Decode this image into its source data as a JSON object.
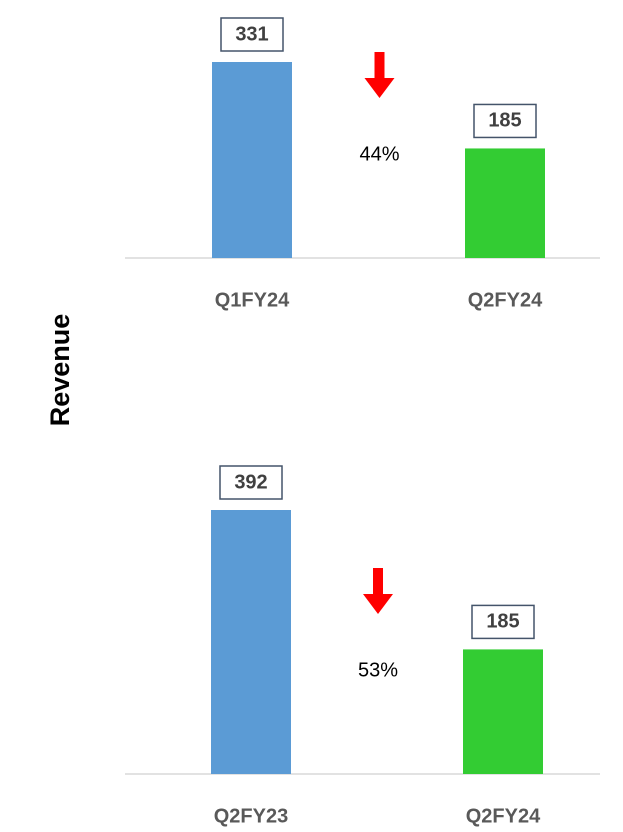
{
  "ylabel": "Revenue",
  "chart_data": [
    {
      "type": "bar",
      "categories": [
        "Q1FY24",
        "Q2FY24"
      ],
      "values": [
        331,
        185
      ],
      "colors": [
        "#5b9bd5",
        "#33cc33"
      ],
      "annotation": "44%",
      "arrow_color": "#ff0000"
    },
    {
      "type": "bar",
      "categories": [
        "Q2FY23",
        "Q2FY24"
      ],
      "values": [
        392,
        185
      ],
      "colors": [
        "#5b9bd5",
        "#33cc33"
      ],
      "annotation": "53%",
      "arrow_color": "#ff0000"
    }
  ]
}
